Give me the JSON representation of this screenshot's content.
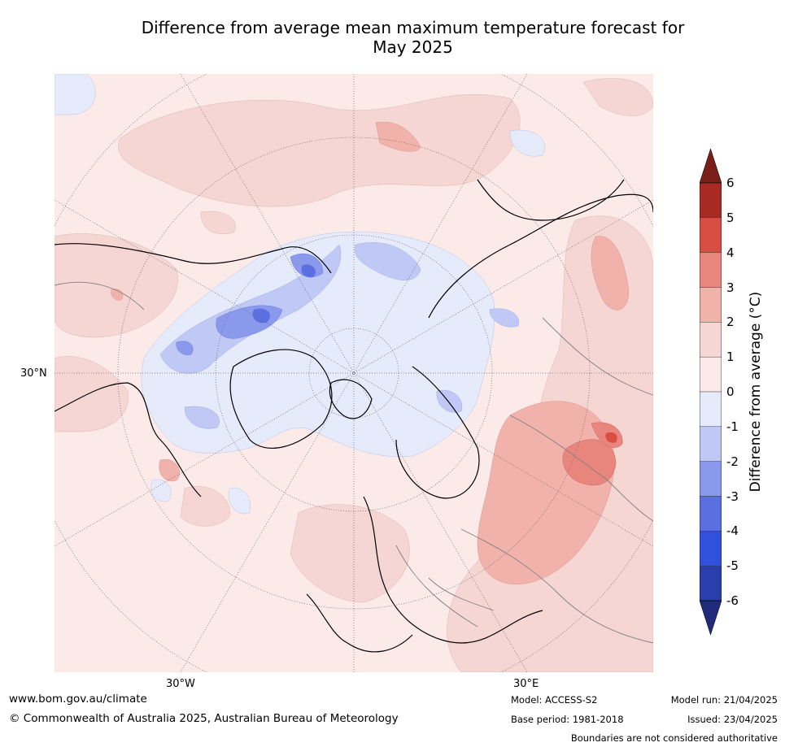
{
  "title_line1": "Difference from average mean maximum temperature forecast for",
  "title_line2": "May 2025",
  "map_labels": {
    "lat_30n": "30°N",
    "lon_30w": "30°W",
    "lon_30e": "30°E"
  },
  "colorbar": {
    "title": "Difference from average (°C)",
    "ticks": [
      "6",
      "5",
      "4",
      "3",
      "2",
      "1",
      "0",
      "-1",
      "-2",
      "-3",
      "-4",
      "-5",
      "-6"
    ],
    "colors": [
      "#7a1e18",
      "#a82a22",
      "#d94e42",
      "#e8857c",
      "#f0b2ab",
      "#f6d6d3",
      "#fbeae8",
      "#e6ebfb",
      "#c0c9f5",
      "#8a99ec",
      "#5c6fe0",
      "#3150db",
      "#2a3fab",
      "#1f2a7a"
    ]
  },
  "footer": {
    "website": "www.bom.gov.au/climate",
    "copyright": "© Commonwealth of Australia 2025, Australian Bureau of Meteorology",
    "model": "Model: ACCESS-S2",
    "base_period": "Base period: 1981-2018",
    "model_run": "Model run: 21/04/2025",
    "issued": "Issued: 23/04/2025",
    "boundaries_note": "Boundaries are not considered authoritative"
  }
}
